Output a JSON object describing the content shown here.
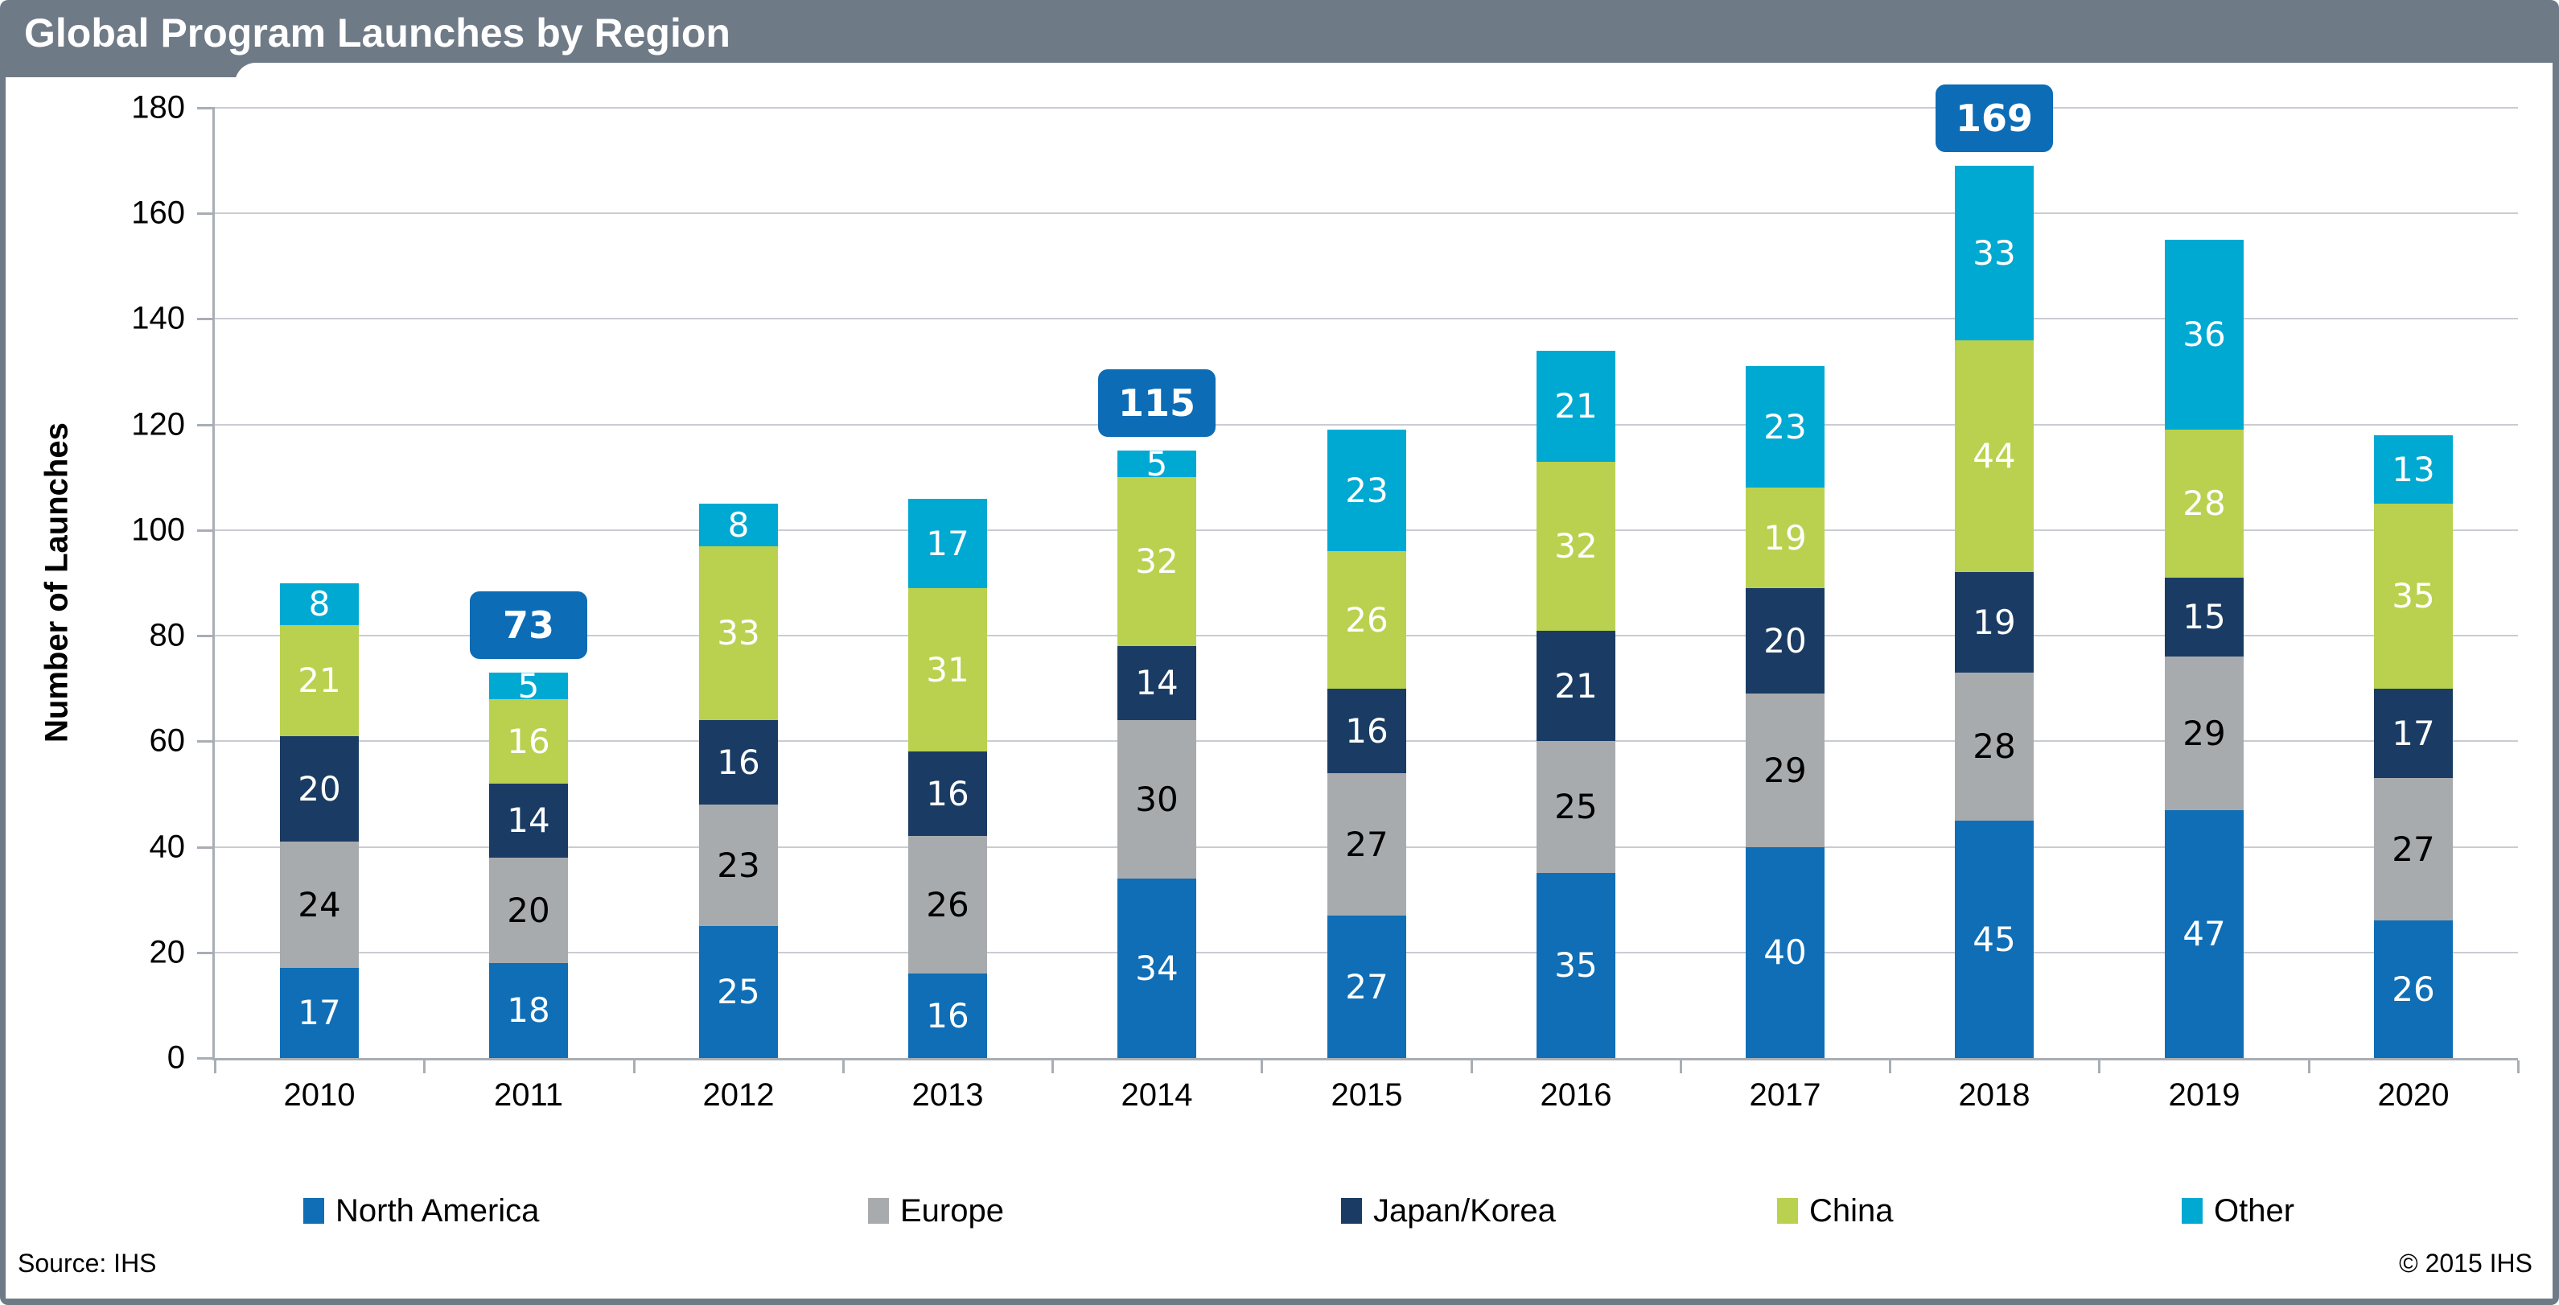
{
  "header": {
    "title": "Global Program Launches by Region"
  },
  "footer": {
    "source": "Source: IHS",
    "copyright": "© 2015 IHS"
  },
  "chart_data": {
    "type": "bar",
    "stacked": true,
    "title": "Global Program Launches by Region",
    "xlabel": "",
    "ylabel": "Number of Launches",
    "ylim": [
      0,
      180
    ],
    "ytick_step": 20,
    "grid": true,
    "legend_position": "bottom",
    "categories": [
      "2010",
      "2011",
      "2012",
      "2013",
      "2014",
      "2015",
      "2016",
      "2017",
      "2018",
      "2019",
      "2020"
    ],
    "series": [
      {
        "name": "North America",
        "color": "#0F6EB6",
        "label_color": "#FFFFFF",
        "values": [
          17,
          18,
          25,
          16,
          34,
          27,
          35,
          40,
          45,
          47,
          26
        ]
      },
      {
        "name": "Europe",
        "color": "#A8ABAE",
        "label_color": "#000000",
        "values": [
          24,
          20,
          23,
          26,
          30,
          27,
          25,
          29,
          28,
          29,
          27
        ]
      },
      {
        "name": "Japan/Korea",
        "color": "#1A3C64",
        "label_color": "#FFFFFF",
        "values": [
          20,
          14,
          16,
          16,
          14,
          16,
          21,
          20,
          19,
          15,
          17
        ]
      },
      {
        "name": "China",
        "color": "#B9D14F",
        "label_color": "#FFFFFF",
        "values": [
          21,
          16,
          33,
          31,
          32,
          26,
          32,
          19,
          44,
          28,
          35
        ]
      },
      {
        "name": "Other",
        "color": "#00A9D2",
        "label_color": "#FFFFFF",
        "values": [
          8,
          5,
          8,
          17,
          5,
          23,
          21,
          23,
          33,
          36,
          13
        ]
      }
    ],
    "total_callouts": [
      {
        "category": "2011",
        "value": 73
      },
      {
        "category": "2014",
        "value": 115
      },
      {
        "category": "2018",
        "value": 169
      }
    ]
  },
  "ui_colors": {
    "frame": "#6F7A87",
    "title_text": "#FFFFFF",
    "callout_bg": "#0C6CB5",
    "callout_text": "#FFFFFF",
    "gridline": "#C9CDD2",
    "axis": "#A8AEB4"
  }
}
